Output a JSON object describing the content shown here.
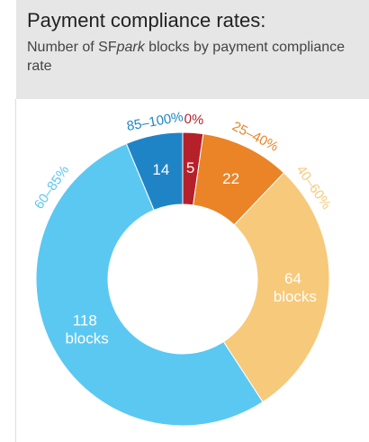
{
  "chart_data": {
    "type": "donut",
    "title": "Payment compliance rates:",
    "subtitle": [
      "Number of SF",
      "park",
      " blocks by payment compliance rate"
    ],
    "categories": [
      "0%",
      "25–40%",
      "40–60%",
      "60–85%",
      "85–100%"
    ],
    "values": [
      5,
      22,
      64,
      118,
      14
    ],
    "value_labels": [
      "5",
      "22",
      "64 blocks",
      "118 blocks",
      "14"
    ],
    "colors": [
      "#b5202a",
      "#ea8426",
      "#f7c97a",
      "#5bc8f2",
      "#1f84c6"
    ]
  }
}
